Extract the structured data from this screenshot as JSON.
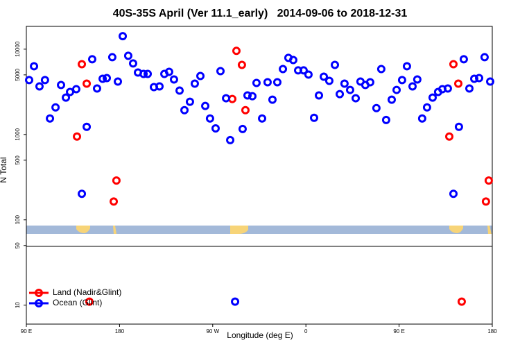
{
  "chart_data": {
    "type": "scatter",
    "title": "40S-35S April (Ver 11.1_early)   2014-09-06 to 2018-12-31",
    "xlabel": "Longitude (deg E)",
    "ylabel": "N Total",
    "xlim": [
      90,
      540
    ],
    "ylim": [
      6,
      18500
    ],
    "ylog": true,
    "legend": "bottom-left",
    "xticks": [
      {
        "value": 90,
        "label": "90 E"
      },
      {
        "value": 180,
        "label": "180"
      },
      {
        "value": 270,
        "label": "90 W"
      },
      {
        "value": 360,
        "label": "0"
      },
      {
        "value": 450,
        "label": "90 E"
      },
      {
        "value": 540,
        "label": "180"
      }
    ],
    "yticks": [
      10,
      50,
      100,
      500,
      1000,
      5000,
      10000
    ],
    "series": [
      {
        "name": "Land (Nadir&Glint)",
        "color": "#ff0000",
        "x": [
          138.9,
          143.6,
          148.3,
          150.9,
          174.4,
          177,
          288.9,
          292.9,
          298.2,
          301.6,
          498.5,
          502.5,
          507.2,
          510.5,
          533.9,
          536.6
        ],
        "values": [
          946,
          6670,
          3950,
          11,
          164,
          289,
          2610,
          9550,
          6550,
          1930,
          946,
          6670,
          3950,
          11,
          164,
          289
        ]
      },
      {
        "name": "Ocean (Glint)",
        "color": "#0000ff",
        "x": [
          92.7,
          97.4,
          102.7,
          108,
          112.8,
          118.2,
          123.5,
          128.2,
          132.2,
          138.2,
          143.6,
          148.3,
          153.6,
          158.3,
          163.7,
          167.7,
          173,
          178.4,
          183.1,
          188.4,
          193.1,
          197.8,
          203.2,
          207.2,
          213.2,
          218.6,
          223.3,
          227.9,
          232.6,
          238,
          242.7,
          248,
          252.7,
          258.1,
          262.8,
          267.4,
          272.8,
          277.5,
          282.9,
          286.9,
          291.6,
          298.9,
          303.6,
          308.3,
          312.3,
          317.7,
          323,
          327.7,
          332.4,
          337.8,
          343.1,
          347.8,
          352.5,
          357.8,
          362.5,
          367.9,
          372.6,
          377.3,
          382.6,
          388,
          392.7,
          397.3,
          402.7,
          408.1,
          412.7,
          417.4,
          422.1,
          428.1,
          432.8,
          437.5,
          442.9,
          447.6,
          452.9,
          457.6,
          463,
          467.6,
          472.3,
          477,
          482.4,
          487.7,
          491.8,
          497.1,
          502.5,
          507.8,
          512.5,
          517.9,
          522.6,
          527.3,
          532.6,
          538
        ],
        "values": [
          4340,
          6310,
          3660,
          4340,
          1540,
          2080,
          3800,
          2710,
          3150,
          3400,
          202,
          1230,
          7620,
          3460,
          4500,
          4580,
          8050,
          4170,
          14200,
          8360,
          6810,
          5330,
          5130,
          5130,
          3590,
          3660,
          5130,
          5430,
          4420,
          3270,
          1930,
          2420,
          3950,
          4850,
          2160,
          1540,
          1180,
          5530,
          2660,
          860,
          11,
          1160,
          2870,
          2810,
          4020,
          1540,
          4100,
          2560,
          4100,
          5850,
          7910,
          7460,
          5640,
          5640,
          5040,
          1570,
          2870,
          4760,
          4250,
          6550,
          2970,
          3950,
          3330,
          2660,
          4170,
          3800,
          4100,
          2040,
          5850,
          1480,
          2560,
          3330,
          4340,
          6310,
          3660,
          4420,
          1540,
          2080,
          2710,
          3150,
          3400,
          3460,
          202,
          1230,
          7620,
          3460,
          4500,
          4580,
          8050,
          4170
        ]
      }
    ]
  }
}
